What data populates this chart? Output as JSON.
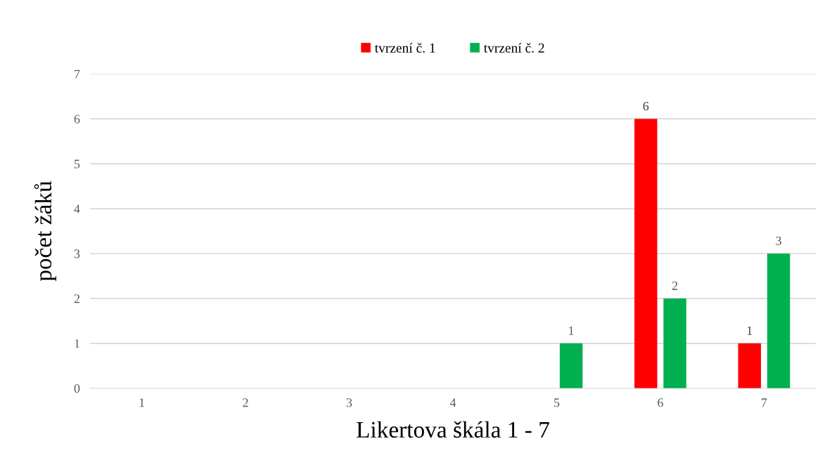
{
  "chart_data": {
    "type": "bar",
    "xlabel": "Likertova škála 1 - 7",
    "ylabel": "počet žáků",
    "categories": [
      "1",
      "2",
      "3",
      "4",
      "5",
      "6",
      "7"
    ],
    "series": [
      {
        "name": "tvrzení č. 1",
        "color": "#ff0000",
        "values": [
          0,
          0,
          0,
          0,
          0,
          6,
          1
        ],
        "value_labels": [
          null,
          null,
          null,
          null,
          null,
          "6",
          "1"
        ]
      },
      {
        "name": "tvrzení č. 2",
        "color": "#00b050",
        "values": [
          0,
          0,
          0,
          0,
          1,
          2,
          3
        ],
        "value_labels": [
          null,
          null,
          null,
          null,
          "1",
          "2",
          "3"
        ]
      }
    ],
    "ylim": [
      0,
      7
    ],
    "yticks": [
      0,
      1,
      2,
      3,
      4,
      5,
      6,
      7
    ],
    "grid": "y",
    "legend": "top"
  }
}
